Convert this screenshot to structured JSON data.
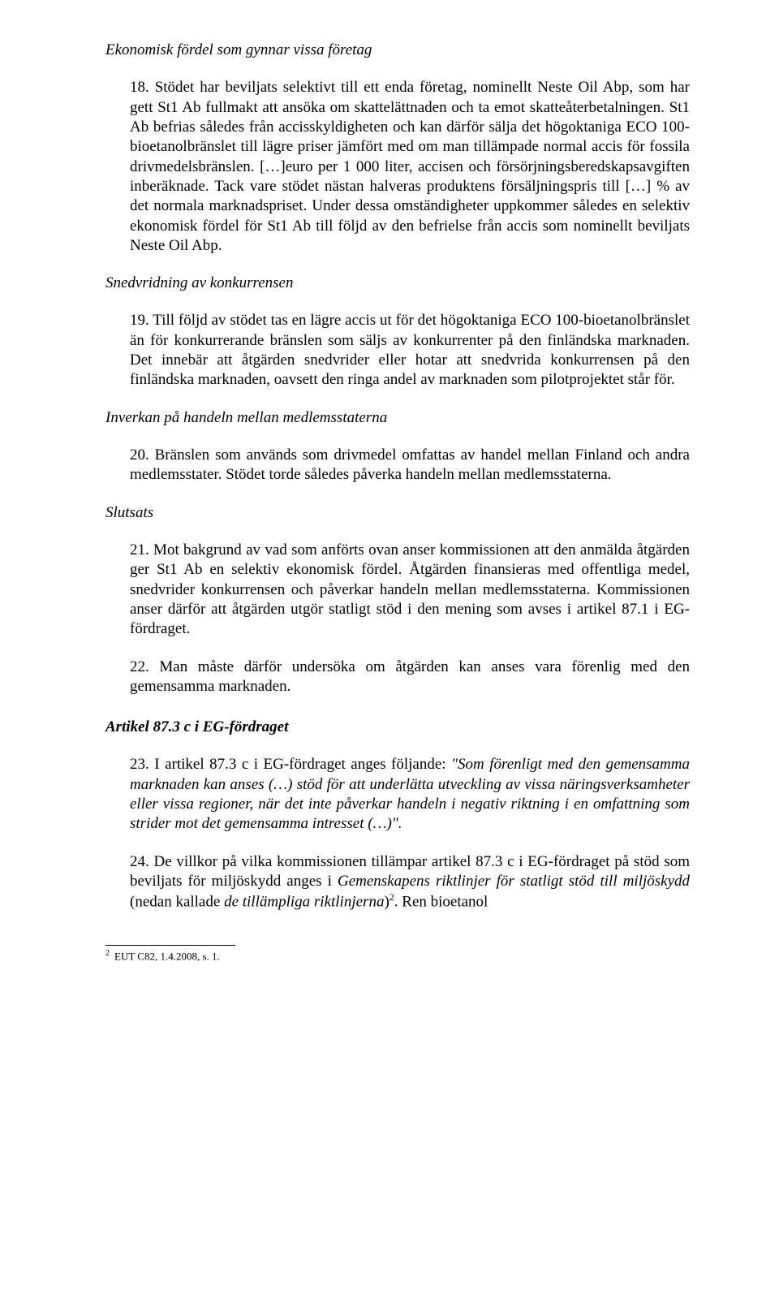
{
  "sections": {
    "s1": {
      "heading": "Ekonomisk fördel som gynnar vissa företag",
      "para18_num": "18.",
      "para18_text": " Stödet har beviljats selektivt till ett enda företag, nominellt Neste Oil Abp, som har gett St1 Ab fullmakt att ansöka om skattelättnaden och ta emot skatteåterbetalningen. St1 Ab befrias således från accisskyldigheten och kan därför sälja det högoktaniga ECO 100-bioetanolbränslet till lägre priser jämfört med om man tillämpade normal accis för fossila drivmedelsbränslen. […]euro per 1 000 liter, accisen och försörjningsberedskapsavgiften inberäknade. Tack vare stödet nästan halveras produktens försäljningspris till […] % av det normala marknadspriset. Under dessa omständigheter uppkommer således en selektiv ekonomisk fördel för St1 Ab till följd av den befrielse från accis som nominellt beviljats Neste Oil Abp."
    },
    "s2": {
      "heading": "Snedvridning av konkurrensen",
      "para19_num": "19.",
      "para19_text": " Till följd av stödet tas en lägre accis ut för det högoktaniga ECO 100-bioetanolbränslet än för konkurrerande bränslen som säljs av konkurrenter på den finländska marknaden. Det innebär att åtgärden snedvrider eller hotar att snedvrida konkurrensen på den finländska marknaden, oavsett den ringa andel av marknaden som pilotprojektet står för."
    },
    "s3": {
      "heading": "Inverkan på handeln mellan medlemsstaterna",
      "para20_num": "20.",
      "para20_text": " Bränslen som används som drivmedel omfattas av handel mellan Finland och andra medlemsstater. Stödet torde således påverka handeln mellan medlemsstaterna."
    },
    "s4": {
      "heading": "Slutsats",
      "para21_num": "21.",
      "para21_text": " Mot bakgrund av vad som anförts ovan anser kommissionen att den anmälda åtgärden ger St1 Ab en selektiv ekonomisk fördel. Åtgärden finansieras med offentliga medel, snedvrider konkurrensen och påverkar handeln mellan medlemsstaterna. Kommissionen anser därför att åtgärden utgör statligt stöd i den mening som avses i artikel 87.1 i EG-fördraget.",
      "para22_num": "22.",
      "para22_text": " Man måste därför undersöka om åtgärden kan anses vara förenlig med den gemensamma marknaden."
    },
    "s5": {
      "heading": "Artikel 87.3 c i  EG-fördraget",
      "para23_num": "23.",
      "para23_lead": " I artikel 87.3 c i EG-fördraget anges följande: ",
      "para23_quote": "\"Som förenligt med den gemensamma marknaden kan anses (…) stöd för att underlätta utveckling av vissa näringsverksamheter eller vissa regioner, när det inte påverkar handeln i negativ riktning i en omfattning som strider mot det gemensamma intresset (…)\".",
      "para24_num": "24.",
      "para24_a": " De villkor på vilka kommissionen tillämpar artikel 87.3 c i EG-fördraget på stöd som beviljats för miljöskydd anges i ",
      "para24_em": "Gemenskapens riktlinjer för statligt stöd till miljöskydd",
      "para24_b": " (nedan kallade ",
      "para24_em2": "de tillämpliga riktlinjerna",
      "para24_c": ")",
      "para24_d": ". Ren bioetanol"
    }
  },
  "footnote": {
    "mark": "2",
    "text": "EUT C82, 1.4.2008, s. 1."
  },
  "refs": {
    "fn2": "2"
  }
}
